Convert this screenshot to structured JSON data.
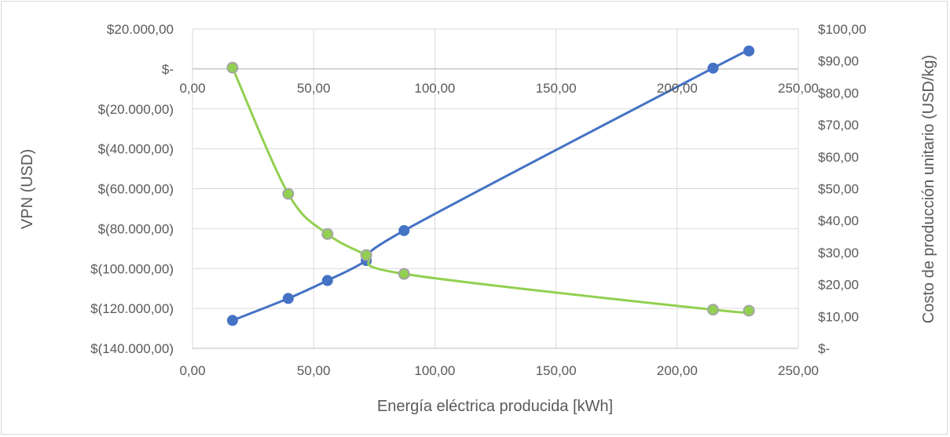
{
  "chart_data": {
    "type": "line",
    "title": "",
    "xlabel": "Energía eléctrica producida [kWh]",
    "ylabel": "VPN (USD)",
    "y2label": "Costo de producción unitario (USD/kg)",
    "xlim": [
      0,
      250
    ],
    "ylim": [
      -140000,
      20000
    ],
    "y2lim": [
      0,
      100
    ],
    "grid": true,
    "legend": "none",
    "x_ticks": [
      "0,00",
      "50,00",
      "100,00",
      "150,00",
      "200,00",
      "250,00"
    ],
    "x_ticks_top": [
      "0,00",
      "50,00",
      "100,00",
      "150,00",
      "200,00",
      "250,00"
    ],
    "y_ticks": [
      "$20.000,00",
      "$-",
      "$(20.000,00)",
      "$(40.000,00)",
      "$(60.000,00)",
      "$(80.000,00)",
      "$(100.000,00)",
      "$(120.000,00)",
      "$(140.000,00)"
    ],
    "y2_ticks": [
      "$100,00",
      "$90,00",
      "$80,00",
      "$70,00",
      "$60,00",
      "$50,00",
      "$40,00",
      "$30,00",
      "$20,00",
      "$10,00",
      "$-"
    ],
    "series": [
      {
        "axis": "left",
        "color": "#4472c4",
        "x": [
          16.5,
          39.5,
          55.7,
          71.7,
          87.3,
          214.8,
          229.6
        ],
        "y": [
          -126000,
          -115000,
          -106000,
          -96000,
          -81000,
          400,
          9000
        ]
      },
      {
        "axis": "right",
        "color": "#92d050",
        "marker_edge": "#a5a5a5",
        "x": [
          16.5,
          39.5,
          55.7,
          71.7,
          87.3,
          214.8,
          229.6
        ],
        "y": [
          87.9,
          48.4,
          35.8,
          29.2,
          23.3,
          12.1,
          11.8
        ]
      }
    ]
  }
}
